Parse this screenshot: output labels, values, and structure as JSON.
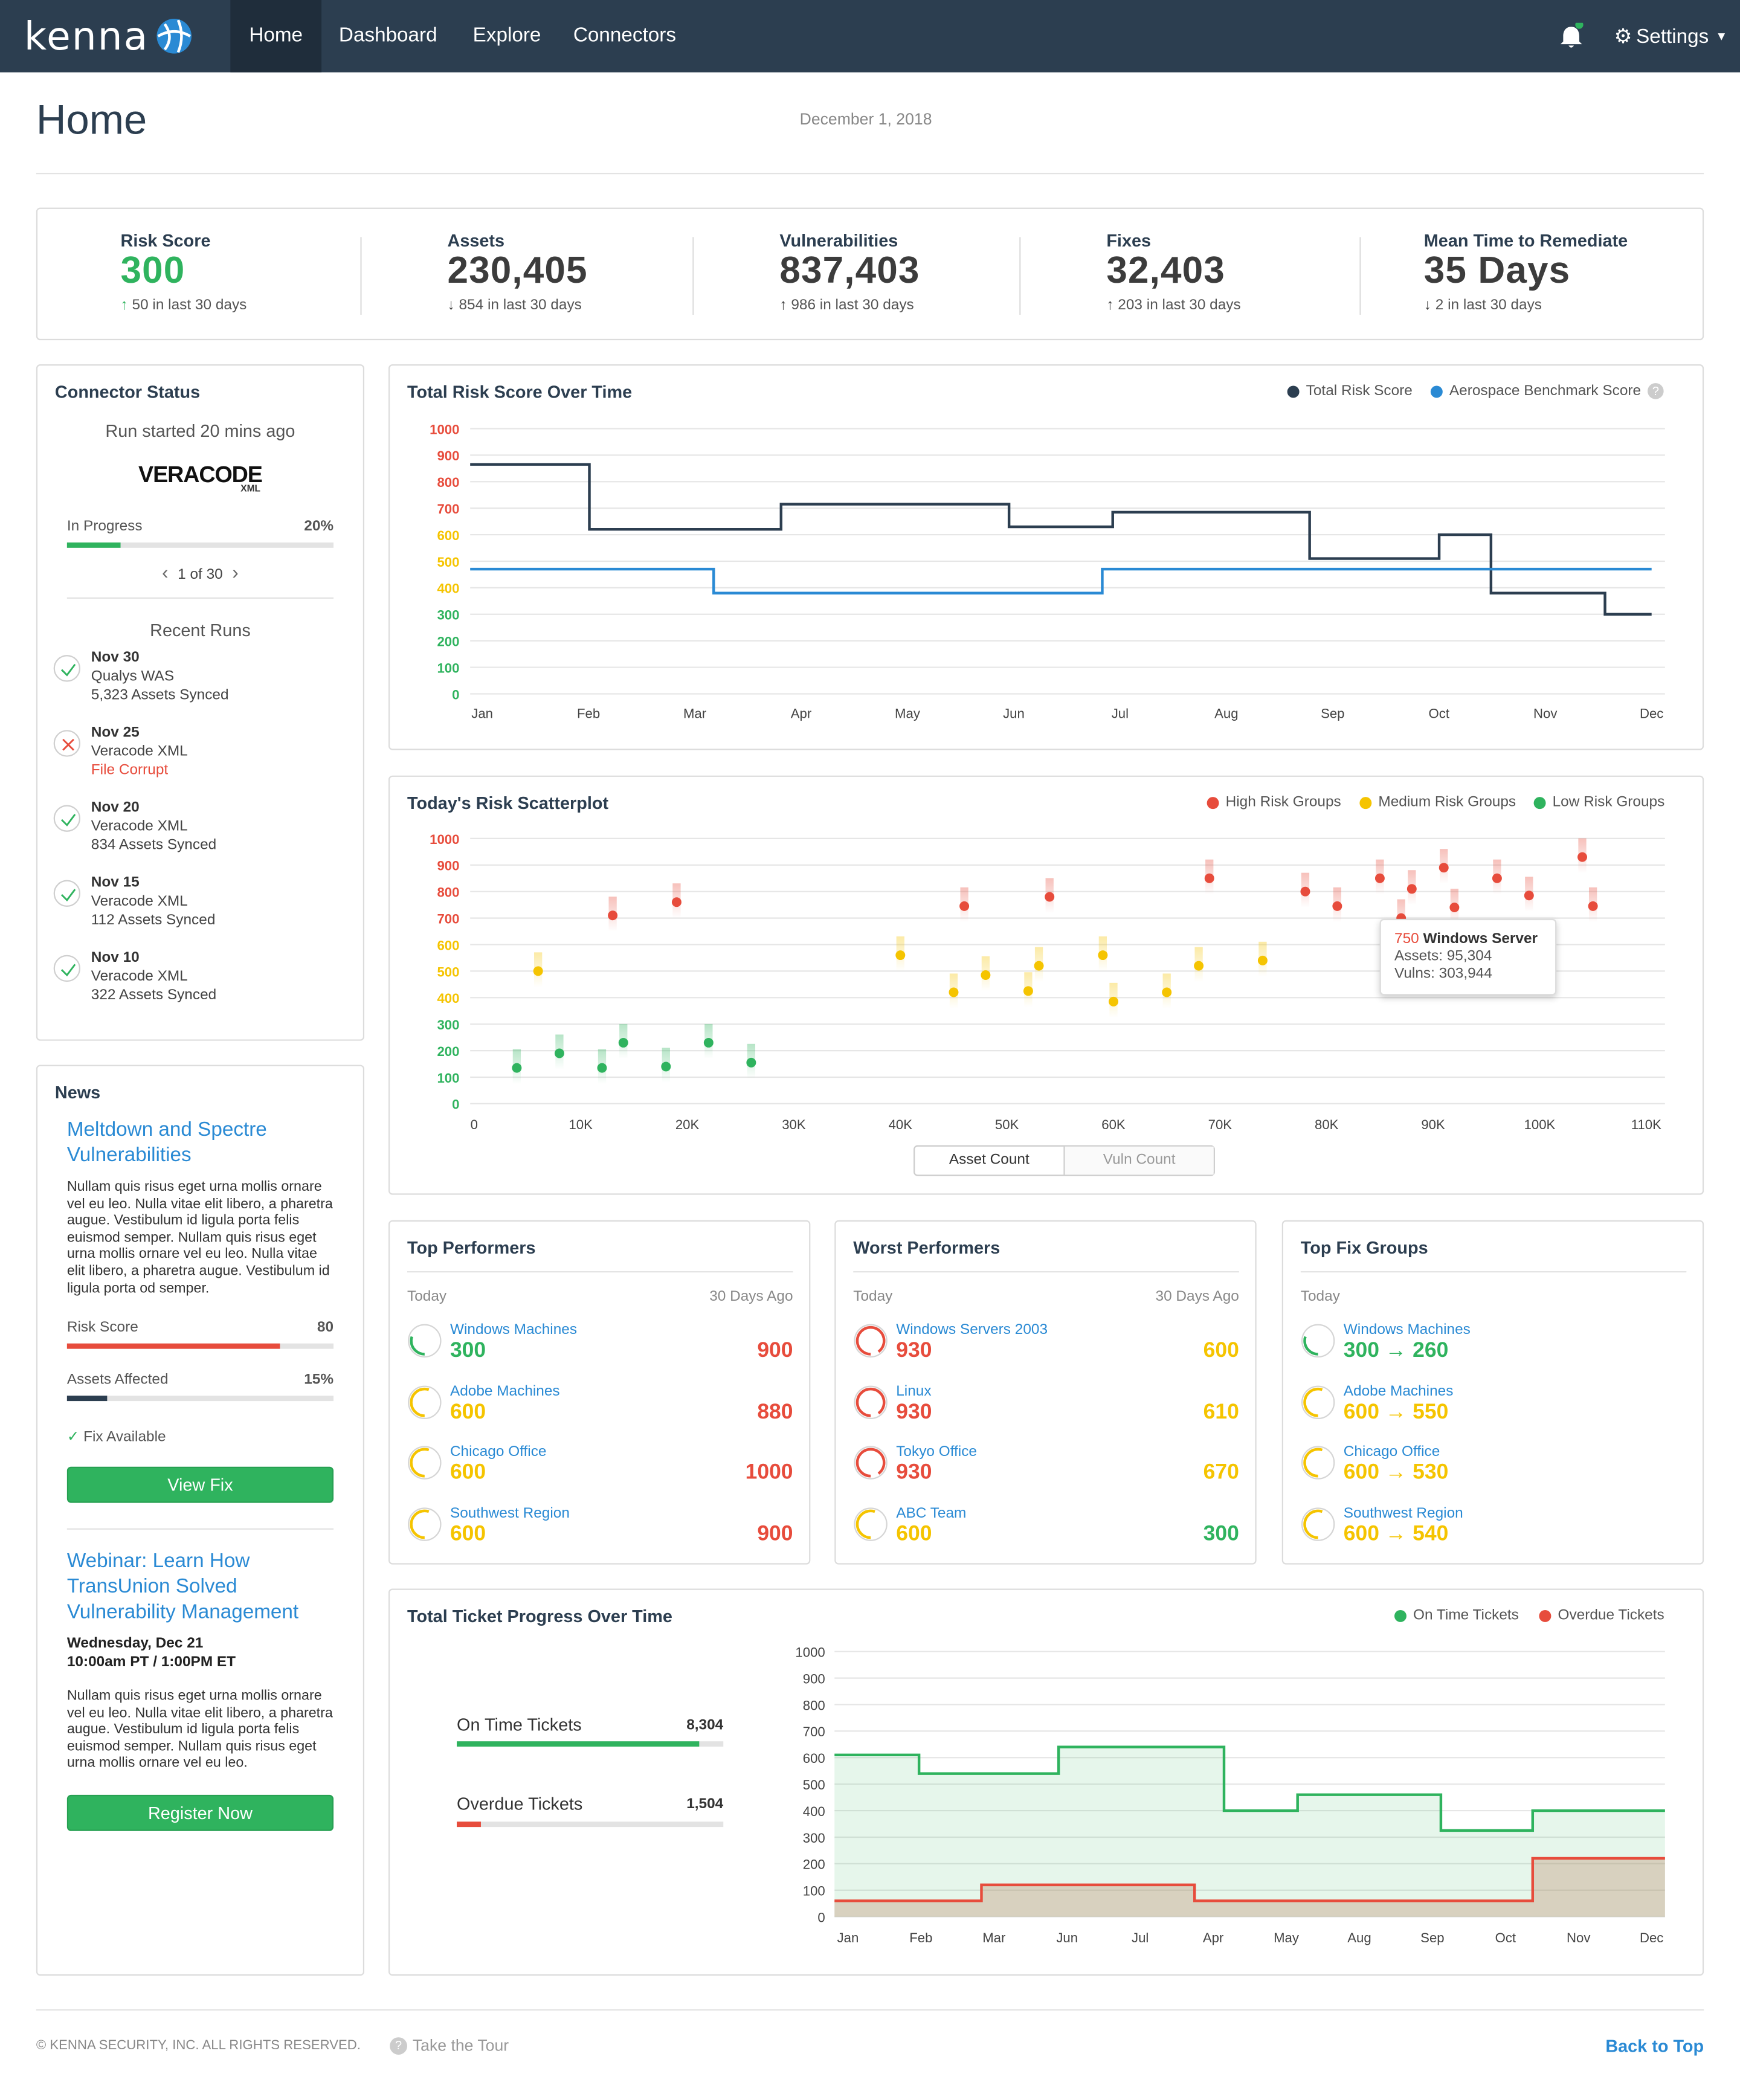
{
  "nav": {
    "logo": "kenna",
    "items": [
      "Home",
      "Dashboard",
      "Explore",
      "Connectors"
    ],
    "settings": "Settings"
  },
  "page": {
    "title": "Home",
    "date": "December 1, 2018"
  },
  "stats": [
    {
      "label": "Risk Score",
      "value": "300",
      "sub": "50 in last 30 days",
      "dir": "up",
      "color": "#2fb35e"
    },
    {
      "label": "Assets",
      "value": "230,405",
      "sub": "854 in last 30 days",
      "dir": "down",
      "color": "#3c3c3c"
    },
    {
      "label": "Vulnerabilities",
      "value": "837,403",
      "sub": "986 in last 30 days",
      "dir": "up",
      "color": "#3c3c3c"
    },
    {
      "label": "Fixes",
      "value": "32,403",
      "sub": "203 in last 30 days",
      "dir": "up",
      "color": "#3c3c3c"
    },
    {
      "label": "Mean Time to Remediate",
      "value": "35 Days",
      "sub": "2 in last 30 days",
      "dir": "down",
      "color": "#3c3c3c"
    }
  ],
  "connector": {
    "title": "Connector Status",
    "run": "Run started 20 mins ago",
    "logo": "VERACODE",
    "logo_sub": "XML",
    "status": "In Progress",
    "progress_label": "20%",
    "progress": 0.2,
    "pager": "1 of 30",
    "recent_title": "Recent Runs",
    "runs": [
      {
        "date": "Nov 30",
        "source": "Qualys WAS",
        "detail": "5,323 Assets Synced",
        "ok": true
      },
      {
        "date": "Nov 25",
        "source": "Veracode XML",
        "detail": "File Corrupt",
        "ok": false
      },
      {
        "date": "Nov 20",
        "source": "Veracode XML",
        "detail": "834 Assets Synced",
        "ok": true
      },
      {
        "date": "Nov 15",
        "source": "Veracode XML",
        "detail": "112 Assets Synced",
        "ok": true
      },
      {
        "date": "Nov 10",
        "source": "Veracode XML",
        "detail": "322 Assets Synced",
        "ok": true
      }
    ]
  },
  "news": {
    "title": "News",
    "article_title": "Meltdown and Spectre Vulnerabilities",
    "article_body": "Nullam quis risus eget urna mollis ornare vel eu leo. Nulla vitae elit libero, a pharetra augue. Vestibulum id ligula porta felis euismod semper. Nullam quis risus eget urna mollis ornare vel eu leo. Nulla vitae elit libero, a pharetra augue. Vestibulum id ligula porta od semper.",
    "risk_label": "Risk Score",
    "risk_value": "80",
    "risk_level": 0.8,
    "assets_label": "Assets Affected",
    "assets_value": "15%",
    "assets_level": 0.15,
    "fix_available": "Fix Available",
    "view_fix": "View Fix",
    "webinar_title": "Webinar: Learn How TransUnion Solved Vulnerability Management",
    "webinar_date": "Wednesday, Dec 21",
    "webinar_time": "10:00am PT / 1:00PM ET",
    "webinar_body": "Nullam quis risus eget urna mollis ornare vel eu leo. Nulla vitae elit libero, a pharetra augue. Vestibulum id ligula porta felis euismod semper. Nullam quis risus eget urna mollis ornare vel eu leo.",
    "register": "Register Now"
  },
  "perf": [
    {
      "title": "Top Performers",
      "left": "Today",
      "right": "30 Days Ago",
      "rows": [
        {
          "name": "Windows Machines",
          "today": "300",
          "ago": "900",
          "tc": "g",
          "ac": "r"
        },
        {
          "name": "Adobe Machines",
          "today": "600",
          "ago": "880",
          "tc": "y",
          "ac": "r"
        },
        {
          "name": "Chicago Office",
          "today": "600",
          "ago": "1000",
          "tc": "y",
          "ac": "r"
        },
        {
          "name": "Southwest Region",
          "today": "600",
          "ago": "900",
          "tc": "y",
          "ac": "r"
        }
      ]
    },
    {
      "title": "Worst Performers",
      "left": "Today",
      "right": "30 Days Ago",
      "rows": [
        {
          "name": "Windows Servers 2003",
          "today": "930",
          "ago": "600",
          "tc": "r",
          "ac": "y"
        },
        {
          "name": "Linux",
          "today": "930",
          "ago": "610",
          "tc": "r",
          "ac": "y"
        },
        {
          "name": "Tokyo Office",
          "today": "930",
          "ago": "670",
          "tc": "r",
          "ac": "y"
        },
        {
          "name": "ABC Team",
          "today": "600",
          "ago": "300",
          "tc": "y",
          "ac": "g"
        }
      ]
    },
    {
      "title": "Top Fix Groups",
      "left": "Today",
      "right": "",
      "rows": [
        {
          "name": "Windows Machines",
          "today": "300 → 260",
          "ago": "",
          "tc": "g",
          "ac": "g"
        },
        {
          "name": "Adobe Machines",
          "today": "600 → 550",
          "ago": "",
          "tc": "y",
          "ac": "y"
        },
        {
          "name": "Chicago Office",
          "today": "600 → 530",
          "ago": "",
          "tc": "y",
          "ac": "y"
        },
        {
          "name": "Southwest Region",
          "today": "600 → 540",
          "ago": "",
          "tc": "y",
          "ac": "y"
        }
      ]
    }
  ],
  "tickets": {
    "title": "Total Ticket Progress Over Time",
    "ontime_label": "On Time Tickets",
    "ontime_value": "8,304",
    "ontime_level": 0.91,
    "overdue_label": "Overdue Tickets",
    "overdue_value": "1,504",
    "overdue_level": 0.09
  },
  "footer": {
    "copyright": "© KENNA SECURITY, INC. ALL RIGHTS RESERVED.",
    "tour": "Take the Tour",
    "top": "Back to Top"
  },
  "chart_data": [
    {
      "type": "line",
      "title": "Total Risk Score Over Time",
      "x": [
        "Jan",
        "Feb",
        "Mar",
        "Apr",
        "May",
        "Jun",
        "Jul",
        "Aug",
        "Sep",
        "Oct",
        "Nov",
        "Dec"
      ],
      "ylim": [
        0,
        1000
      ],
      "yticks": [
        0,
        100,
        200,
        300,
        400,
        500,
        600,
        700,
        800,
        900,
        1000
      ],
      "series": [
        {
          "name": "Total Risk Score",
          "color": "#2c3e50",
          "steps": [
            [
              0,
              865
            ],
            [
              1.15,
              865
            ],
            [
              1.15,
              620
            ],
            [
              3,
              620
            ],
            [
              3,
              715
            ],
            [
              5.2,
              715
            ],
            [
              5.2,
              630
            ],
            [
              6.2,
              630
            ],
            [
              6.2,
              685
            ],
            [
              8.1,
              685
            ],
            [
              8.1,
              510
            ],
            [
              9.35,
              510
            ],
            [
              9.35,
              600
            ],
            [
              9.85,
              600
            ],
            [
              9.85,
              380
            ],
            [
              10.95,
              380
            ],
            [
              10.95,
              300
            ],
            [
              11.4,
              300
            ]
          ]
        },
        {
          "name": "Aerospace Benchmark Score",
          "color": "#2a8ad4",
          "steps": [
            [
              0,
              470
            ],
            [
              2.35,
              470
            ],
            [
              2.35,
              380
            ],
            [
              6.1,
              380
            ],
            [
              6.1,
              470
            ],
            [
              11.4,
              470
            ]
          ]
        }
      ]
    },
    {
      "type": "scatter",
      "title": "Today's Risk Scatterplot",
      "xlim": [
        0,
        110000
      ],
      "ylim": [
        0,
        1000
      ],
      "xticks": [
        "0",
        "10K",
        "20K",
        "30K",
        "40K",
        "50K",
        "60K",
        "70K",
        "80K",
        "90K",
        "100K",
        "110K"
      ],
      "yticks": [
        0,
        100,
        200,
        300,
        400,
        500,
        600,
        700,
        800,
        900,
        1000
      ],
      "series": [
        {
          "name": "High Risk Groups",
          "color": "#e74c3c",
          "points": [
            [
              13000,
              710
            ],
            [
              19000,
              760
            ],
            [
              46000,
              745
            ],
            [
              54000,
              780
            ],
            [
              69000,
              850
            ],
            [
              78000,
              800
            ],
            [
              81000,
              745
            ],
            [
              85000,
              850
            ],
            [
              87000,
              700
            ],
            [
              88000,
              810
            ],
            [
              91000,
              890
            ],
            [
              92000,
              740
            ],
            [
              96000,
              850
            ],
            [
              99000,
              785
            ],
            [
              104000,
              930
            ],
            [
              105000,
              745
            ]
          ]
        },
        {
          "name": "Medium Risk Groups",
          "color": "#f5c400",
          "points": [
            [
              6000,
              500
            ],
            [
              40000,
              560
            ],
            [
              45000,
              420
            ],
            [
              48000,
              485
            ],
            [
              52000,
              425
            ],
            [
              53000,
              520
            ],
            [
              59000,
              560
            ],
            [
              60000,
              385
            ],
            [
              65000,
              420
            ],
            [
              68000,
              520
            ],
            [
              74000,
              540
            ]
          ]
        },
        {
          "name": "Low Risk Groups",
          "color": "#2fb35e",
          "points": [
            [
              4000,
              135
            ],
            [
              8000,
              190
            ],
            [
              12000,
              135
            ],
            [
              14000,
              230
            ],
            [
              18000,
              140
            ],
            [
              22000,
              230
            ],
            [
              26000,
              155
            ]
          ]
        }
      ],
      "tooltip": {
        "value": "750",
        "name": "Windows Server",
        "assets": "Assets: 95,304",
        "vulns": "Vulns: 303,944"
      },
      "toggle": [
        "Asset Count",
        "Vuln Count"
      ]
    },
    {
      "type": "area",
      "title": "Total Ticket Progress Over Time",
      "x": [
        "Jan",
        "Feb",
        "Mar",
        "Jun",
        "Jul",
        "Apr",
        "May",
        "Aug",
        "Sep",
        "Oct",
        "Nov",
        "Dec"
      ],
      "ylim": [
        0,
        1000
      ],
      "yticks": [
        0,
        100,
        200,
        300,
        400,
        500,
        600,
        700,
        800,
        900,
        1000
      ],
      "series": [
        {
          "name": "On Time Tickets",
          "color": "#2fb35e",
          "steps": [
            [
              0,
              610
            ],
            [
              1.15,
              610
            ],
            [
              1.15,
              540
            ],
            [
              3.05,
              540
            ],
            [
              3.05,
              640
            ],
            [
              5.3,
              640
            ],
            [
              5.3,
              400
            ],
            [
              6.3,
              400
            ],
            [
              6.3,
              460
            ],
            [
              8.25,
              460
            ],
            [
              8.25,
              325
            ],
            [
              9.5,
              325
            ],
            [
              9.5,
              400
            ],
            [
              11.3,
              400
            ]
          ]
        },
        {
          "name": "Overdue Tickets",
          "color": "#e74c3c",
          "steps": [
            [
              0,
              60
            ],
            [
              2,
              60
            ],
            [
              2,
              120
            ],
            [
              4.9,
              120
            ],
            [
              4.9,
              60
            ],
            [
              9.5,
              60
            ],
            [
              9.5,
              220
            ],
            [
              11.3,
              220
            ]
          ]
        }
      ]
    }
  ]
}
